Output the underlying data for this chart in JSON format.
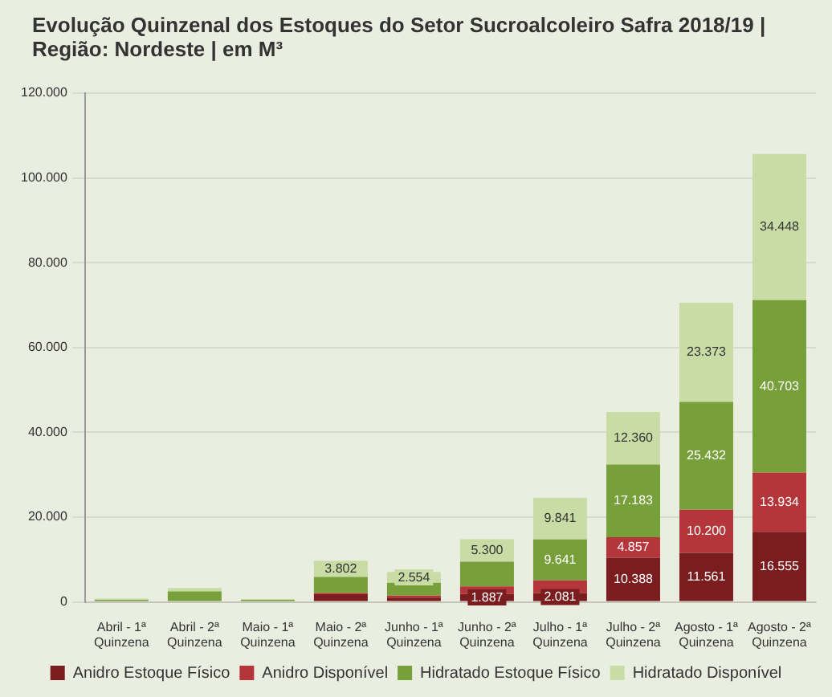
{
  "chart_data": {
    "type": "bar",
    "stacked": true,
    "title": "Evolução Quinzenal dos Estoques do Setor Sucroalcoleiro Safra 2018/19 | Região: Nordeste | em M³",
    "categories": [
      "Abril - 1ª Quinzena",
      "Abril - 2ª Quinzena",
      "Maio - 1ª Quinzena",
      "Maio - 2ª Quinzena",
      "Junho - 1ª Quinzena",
      "Junho - 2ª Quinzena",
      "Julho - 1ª Quinzena",
      "Julho - 2ª Quinzena",
      "Agosto - 1ª Quinzena",
      "Agosto - 2ª Quinzena"
    ],
    "series": [
      {
        "name": "Anidro Estoque Físico",
        "color": "#7b1c1f",
        "values": [
          0,
          0,
          0,
          1800,
          1000,
          1887,
          2081,
          10388,
          11561,
          16555
        ],
        "value_labels": [
          null,
          null,
          null,
          null,
          null,
          "1.887",
          "2.081",
          "10.388",
          "11.561",
          "16.555"
        ]
      },
      {
        "name": "Anidro Disponível",
        "color": "#b5363a",
        "values": [
          0,
          0,
          0,
          300,
          500,
          1800,
          3000,
          4857,
          10200,
          13934
        ],
        "value_labels": [
          null,
          null,
          null,
          null,
          null,
          null,
          null,
          "4.857",
          "10.200",
          "13.934"
        ]
      },
      {
        "name": "Hidratado Estoque Físico",
        "color": "#77a03a",
        "values": [
          500,
          2500,
          500,
          3800,
          3000,
          5800,
          9641,
          17183,
          25432,
          40703
        ],
        "value_labels": [
          null,
          null,
          null,
          null,
          null,
          null,
          "9.641",
          "17.183",
          "25.432",
          "40.703"
        ]
      },
      {
        "name": "Hidratado Disponível",
        "color": "#c9dca6",
        "values": [
          300,
          800,
          200,
          3802,
          2554,
          5300,
          9841,
          12360,
          23373,
          34448
        ],
        "value_labels": [
          null,
          null,
          null,
          "3.802",
          "2.554",
          "5.300",
          "9.841",
          "12.360",
          "23.373",
          "34.448"
        ]
      }
    ],
    "ylim": [
      0,
      120000
    ],
    "yticks": [
      {
        "value": 0,
        "label": "0"
      },
      {
        "value": 20000,
        "label": "20.000"
      },
      {
        "value": 40000,
        "label": "40.000"
      },
      {
        "value": 60000,
        "label": "60.000"
      },
      {
        "value": 80000,
        "label": "80.000"
      },
      {
        "value": 100000,
        "label": "100.000"
      },
      {
        "value": 120000,
        "label": "120.000"
      }
    ],
    "grid": "y",
    "legend": "bottom"
  }
}
